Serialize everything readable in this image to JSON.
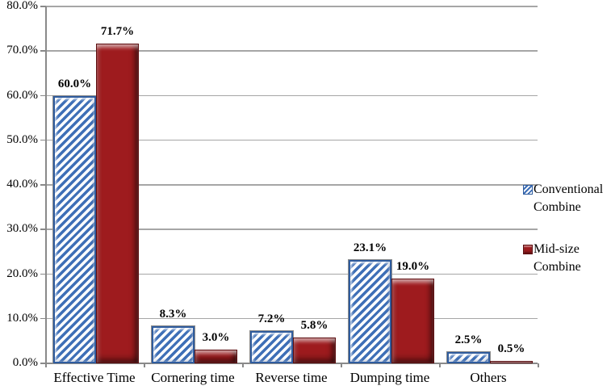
{
  "chart_data": {
    "type": "bar",
    "title": "",
    "xlabel": "",
    "ylabel": "",
    "categories": [
      "Effective Time",
      "Cornering time",
      "Reverse time",
      "Dumping time",
      "Others"
    ],
    "series": [
      {
        "name": "Conventional Combine",
        "values": [
          60.0,
          8.3,
          7.2,
          23.1,
          2.5
        ],
        "labels": [
          "60.0%",
          "8.3%",
          "7.2%",
          "23.1%",
          "2.5%"
        ]
      },
      {
        "name": "Mid-size Combine",
        "values": [
          71.7,
          3.0,
          5.8,
          19.0,
          0.5
        ],
        "labels": [
          "71.7%",
          "3.0%",
          "5.8%",
          "19.0%",
          "0.5%"
        ]
      }
    ],
    "ylim": [
      0,
      80
    ],
    "ytick_step": 10,
    "yticks": [
      "0.0%",
      "10.0%",
      "20.0%",
      "30.0%",
      "40.0%",
      "50.0%",
      "60.0%",
      "70.0%",
      "80.0%"
    ],
    "grid": true,
    "legend_position": "right",
    "colors": {
      "conventional_stripe": "#3e6fb7",
      "conventional_border": "#2f5c9e",
      "midsize_fill": "#9e1b1e",
      "midsize_border": "#5d0e10",
      "gridline": "#a6a6a6",
      "axis": "#898989",
      "label_text": "#000000"
    }
  }
}
